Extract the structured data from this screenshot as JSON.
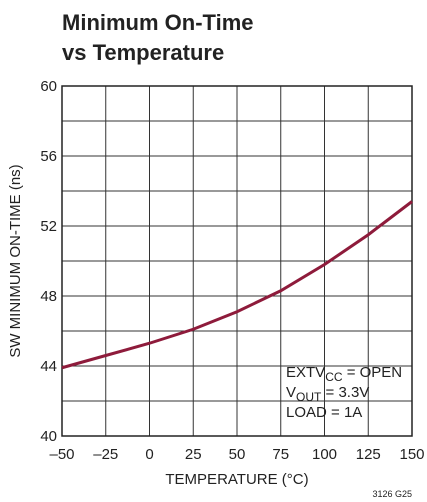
{
  "chart_data": {
    "type": "line",
    "title_lines": [
      "Minimum On-Time",
      "vs Temperature"
    ],
    "x_label": "TEMPERATURE (°C)",
    "y_label": "SW MINIMUM ON-TIME (ns)",
    "x": [
      -50,
      -25,
      0,
      25,
      50,
      75,
      100,
      125,
      150
    ],
    "series": [
      {
        "color": "#8e1b3b",
        "values": [
          43.9,
          44.6,
          45.3,
          46.1,
          47.1,
          48.3,
          49.8,
          51.5,
          53.4
        ]
      }
    ],
    "xlim": [
      -50,
      150
    ],
    "ylim": [
      40,
      60
    ],
    "xticks": [
      {
        "value": -50,
        "label": "–50"
      },
      {
        "value": -25,
        "label": "–25"
      },
      0,
      25,
      50,
      75,
      100,
      125,
      150
    ],
    "yticks": [
      40,
      44,
      48,
      52,
      56,
      60
    ],
    "y_minor_grid": [
      42,
      46,
      50,
      54,
      58
    ],
    "grid": true,
    "annotation_lines": [
      [
        "EXTV",
        "CC",
        " = OPEN"
      ],
      [
        "V",
        "OUT",
        " = 3.3V"
      ],
      [
        "LOAD = 1A"
      ]
    ],
    "footnote": "3126 G25"
  }
}
